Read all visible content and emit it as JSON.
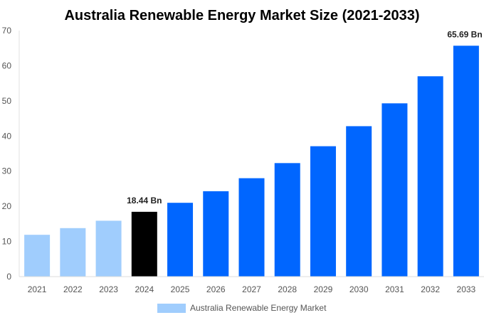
{
  "chart_data": {
    "type": "bar",
    "title": "Australia Renewable Energy Market Size (2021-2033)",
    "categories": [
      "2021",
      "2022",
      "2023",
      "2024",
      "2025",
      "2026",
      "2027",
      "2028",
      "2029",
      "2030",
      "2031",
      "2032",
      "2033"
    ],
    "series": [
      {
        "name": "Australia Renewable Energy Market",
        "values": [
          11.9,
          13.8,
          15.9,
          18.44,
          21.0,
          24.3,
          28.0,
          32.3,
          37.1,
          42.8,
          49.3,
          57.0,
          65.69
        ]
      }
    ],
    "bar_colors": [
      "#a0cdfd",
      "#a0cdfd",
      "#a0cdfd",
      "#000000",
      "#0066ff",
      "#0066ff",
      "#0066ff",
      "#0066ff",
      "#0066ff",
      "#0066ff",
      "#0066ff",
      "#0066ff",
      "#0066ff"
    ],
    "data_labels": [
      {
        "category": "2024",
        "text": "18.44 Bn"
      },
      {
        "category": "2033",
        "text": "65.69 Bn"
      }
    ],
    "ylim": [
      0,
      70
    ],
    "yticks": [
      0,
      10,
      20,
      30,
      40,
      50,
      60,
      70
    ],
    "xlabel": "",
    "ylabel": "",
    "grid": false,
    "legend": {
      "position": "bottom",
      "label": "Australia Renewable Energy Market",
      "color": "#a0cdfd"
    }
  }
}
